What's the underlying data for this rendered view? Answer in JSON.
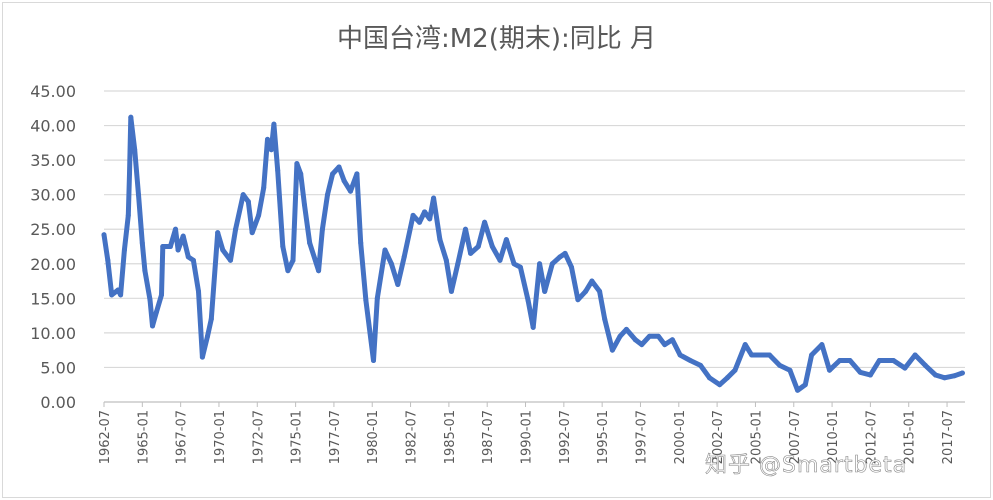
{
  "chart_data": {
    "type": "line",
    "title": "中国台湾:M2(期末):同比 月",
    "xlabel": "",
    "ylabel": "",
    "ylim": [
      0,
      45
    ],
    "y_ticks": [
      "0.00",
      "5.00",
      "10.00",
      "15.00",
      "20.00",
      "25.00",
      "30.00",
      "35.00",
      "40.00",
      "45.00"
    ],
    "x_ticks": [
      "1962-07",
      "1965-01",
      "1967-07",
      "1970-01",
      "1972-07",
      "1975-01",
      "1977-07",
      "1980-01",
      "1982-07",
      "1985-01",
      "1987-07",
      "1990-01",
      "1992-07",
      "1995-01",
      "1997-07",
      "2000-01",
      "2002-07",
      "2005-01",
      "2007-07",
      "2010-01",
      "2012-07",
      "2015-01",
      "2017-07"
    ],
    "grid": "horizontal",
    "legend": "none",
    "line_color": "#4472C4",
    "series": [
      {
        "x": [
          "1962-07",
          "1962-10",
          "1963-01",
          "1963-06",
          "1963-08",
          "1963-11",
          "1964-02",
          "1964-03",
          "1964-04",
          "1964-07",
          "1964-10",
          "1965-01",
          "1965-03",
          "1965-07",
          "1965-09",
          "1965-12",
          "1966-04",
          "1966-05",
          "1966-11",
          "1967-03",
          "1967-05",
          "1967-09",
          "1968-01",
          "1968-05",
          "1968-09",
          "1968-12",
          "1969-04",
          "1969-07",
          "1969-12",
          "1970-04",
          "1970-10",
          "1971-02",
          "1971-08",
          "1971-12",
          "1972-03",
          "1972-08",
          "1972-12",
          "1973-03",
          "1973-06",
          "1973-08",
          "1973-11",
          "1974-03",
          "1974-07",
          "1974-11",
          "1975-02",
          "1975-05",
          "1975-08",
          "1975-12",
          "1976-07",
          "1976-10",
          "1977-02",
          "1977-06",
          "1977-11",
          "1978-03",
          "1978-08",
          "1979-01",
          "1979-04",
          "1979-08",
          "1980-02",
          "1980-05",
          "1980-11",
          "1981-04",
          "1981-09",
          "1982-02",
          "1982-09",
          "1983-02",
          "1983-06",
          "1983-10",
          "1984-01",
          "1984-06",
          "1984-11",
          "1985-03",
          "1985-08",
          "1986-02",
          "1986-06",
          "1986-12",
          "1987-05",
          "1987-11",
          "1988-05",
          "1988-10",
          "1989-04",
          "1989-09",
          "1990-03",
          "1990-07",
          "1990-12",
          "1991-04",
          "1991-10",
          "1992-04",
          "1992-08",
          "1993-01",
          "1993-06",
          "1993-12",
          "1994-05",
          "1994-11",
          "1995-03",
          "1995-09",
          "1996-03",
          "1996-08",
          "1997-03",
          "1997-08",
          "1998-02",
          "1998-09",
          "1999-02",
          "1999-08",
          "2000-02",
          "2000-10",
          "2001-06",
          "2002-01",
          "2002-09",
          "2003-03",
          "2003-09",
          "2004-05",
          "2004-10",
          "2005-06",
          "2005-12",
          "2006-08",
          "2007-04",
          "2007-10",
          "2008-04",
          "2008-09",
          "2009-05",
          "2009-11",
          "2010-07",
          "2011-03",
          "2011-11",
          "2012-07",
          "2013-02",
          "2014-01",
          "2014-10",
          "2015-06",
          "2016-02",
          "2016-10",
          "2017-05",
          "2018-01",
          "2018-07"
        ],
        "y": [
          24.2,
          20.5,
          15.5,
          16.2,
          15.5,
          22,
          27,
          33,
          41.2,
          36.5,
          30,
          23,
          19,
          14.8,
          11,
          13,
          15.5,
          22.5,
          22.5,
          25,
          22,
          24,
          21,
          20.5,
          16,
          6.5,
          9.5,
          12,
          24.5,
          22,
          20.5,
          25,
          30,
          29,
          24.5,
          27,
          31,
          38,
          36.5,
          40.2,
          33.5,
          22.5,
          19,
          20.5,
          34.5,
          33,
          28.5,
          23,
          19,
          25,
          30,
          33,
          34,
          32,
          30.5,
          33,
          23,
          14.7,
          6,
          15,
          22,
          20,
          17,
          21,
          27,
          26,
          27.5,
          26.5,
          29.5,
          23.5,
          20.5,
          16,
          20,
          25,
          21.5,
          22.5,
          26,
          22.5,
          20.5,
          23.5,
          20,
          19.5,
          14.7,
          10.8,
          20,
          16,
          20,
          21,
          21.5,
          19.5,
          14.8,
          16,
          17.5,
          16,
          12,
          7.5,
          9.5,
          10.5,
          9,
          8.3,
          9.5,
          9.5,
          8.3,
          9,
          6.8,
          6,
          5.3,
          3.5,
          2.5,
          3.5,
          4.6,
          8.3,
          6.8,
          6.8,
          6.8,
          5.3,
          4.6,
          1.7,
          2.5,
          6.8,
          8.3,
          4.6,
          6,
          6,
          4.3,
          3.9,
          6,
          6,
          4.9,
          6.8,
          5.3,
          3.9,
          3.5,
          3.8,
          4.2
        ]
      }
    ]
  },
  "watermark": "知乎 @Smartbeta"
}
